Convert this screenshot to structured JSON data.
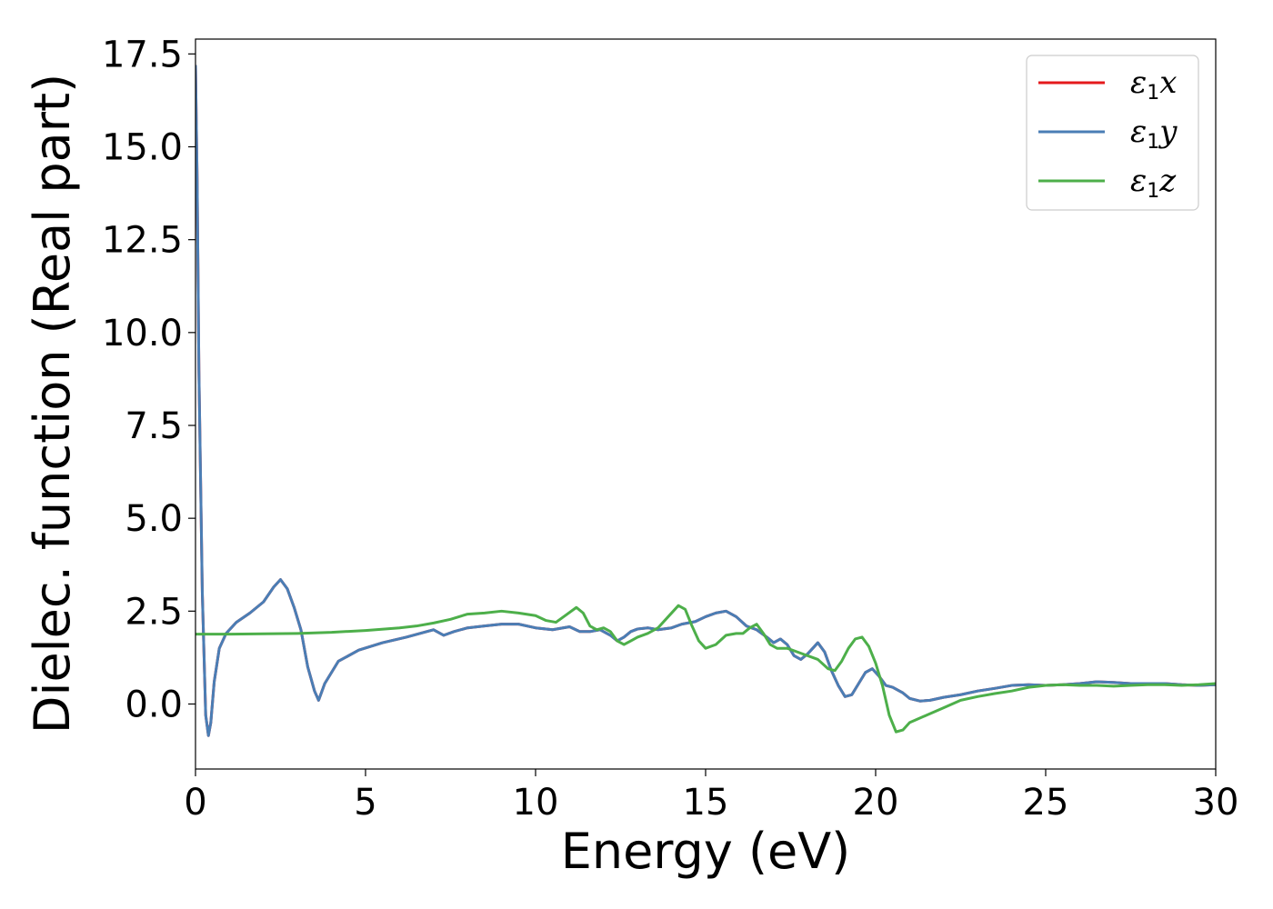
{
  "chart_data": {
    "type": "line",
    "title": "",
    "xlabel": "Energy (eV)",
    "ylabel": "Dielec. function (Real part)",
    "xlim": [
      0,
      30
    ],
    "ylim": [
      -1.75,
      17.9
    ],
    "xticks": [
      0,
      5,
      10,
      15,
      20,
      25,
      30
    ],
    "yticks": [
      0.0,
      2.5,
      5.0,
      7.5,
      10.0,
      12.5,
      15.0,
      17.5
    ],
    "xtick_labels": [
      "0",
      "5",
      "10",
      "15",
      "20",
      "25",
      "30"
    ],
    "ytick_labels": [
      "0.0",
      "2.5",
      "5.0",
      "7.5",
      "10.0",
      "12.5",
      "15.0",
      "17.5"
    ],
    "grid": false,
    "legend_position": "top-right",
    "series": [
      {
        "name": "ε1x",
        "legend_symbol": "ε",
        "legend_sub": "1",
        "legend_var": "x",
        "color": "#e41a1c",
        "x": [
          0.0,
          0.05,
          0.1,
          0.2,
          0.3,
          0.38,
          0.45,
          0.55,
          0.7,
          0.9,
          1.2,
          1.6,
          2.0,
          2.3,
          2.5,
          2.7,
          2.9,
          3.1,
          3.3,
          3.5,
          3.62,
          3.8,
          4.2,
          4.8,
          5.5,
          6.2,
          6.8,
          7.0,
          7.3,
          7.6,
          8.0,
          8.5,
          9.0,
          9.5,
          10.0,
          10.5,
          11.0,
          11.3,
          11.6,
          11.9,
          12.2,
          12.4,
          12.6,
          12.8,
          13.0,
          13.3,
          13.6,
          14.0,
          14.3,
          14.7,
          15.0,
          15.3,
          15.6,
          15.9,
          16.2,
          16.5,
          16.8,
          17.0,
          17.2,
          17.4,
          17.6,
          17.8,
          18.0,
          18.3,
          18.5,
          18.7,
          18.9,
          19.1,
          19.3,
          19.5,
          19.7,
          19.9,
          20.1,
          20.3,
          20.5,
          20.8,
          21.0,
          21.3,
          21.6,
          22.0,
          22.5,
          23.0,
          23.5,
          24.0,
          24.5,
          25.0,
          25.5,
          26.0,
          26.5,
          27.0,
          27.5,
          28.0,
          28.5,
          29.0,
          29.5,
          30.0
        ],
        "y": [
          17.2,
          14.0,
          9.0,
          3.0,
          -0.3,
          -0.85,
          -0.5,
          0.6,
          1.5,
          1.9,
          2.2,
          2.45,
          2.75,
          3.15,
          3.35,
          3.1,
          2.6,
          2.0,
          1.0,
          0.35,
          0.1,
          0.55,
          1.15,
          1.45,
          1.65,
          1.8,
          1.95,
          2.0,
          1.85,
          1.95,
          2.05,
          2.1,
          2.15,
          2.15,
          2.05,
          2.0,
          2.08,
          1.95,
          1.95,
          2.0,
          1.85,
          1.7,
          1.8,
          1.95,
          2.02,
          2.05,
          2.0,
          2.05,
          2.15,
          2.22,
          2.35,
          2.45,
          2.5,
          2.35,
          2.1,
          2.0,
          1.8,
          1.65,
          1.75,
          1.6,
          1.3,
          1.2,
          1.35,
          1.65,
          1.4,
          0.9,
          0.5,
          0.2,
          0.25,
          0.55,
          0.85,
          0.95,
          0.75,
          0.5,
          0.45,
          0.3,
          0.15,
          0.08,
          0.1,
          0.18,
          0.25,
          0.35,
          0.42,
          0.5,
          0.52,
          0.5,
          0.52,
          0.55,
          0.6,
          0.58,
          0.55,
          0.55,
          0.55,
          0.52,
          0.5,
          0.52
        ]
      },
      {
        "name": "ε1y",
        "legend_symbol": "ε",
        "legend_sub": "1",
        "legend_var": "y",
        "color": "#4a7eb5",
        "x": [
          0.0,
          0.05,
          0.1,
          0.2,
          0.3,
          0.38,
          0.45,
          0.55,
          0.7,
          0.9,
          1.2,
          1.6,
          2.0,
          2.3,
          2.5,
          2.7,
          2.9,
          3.1,
          3.3,
          3.5,
          3.62,
          3.8,
          4.2,
          4.8,
          5.5,
          6.2,
          6.8,
          7.0,
          7.3,
          7.6,
          8.0,
          8.5,
          9.0,
          9.5,
          10.0,
          10.5,
          11.0,
          11.3,
          11.6,
          11.9,
          12.2,
          12.4,
          12.6,
          12.8,
          13.0,
          13.3,
          13.6,
          14.0,
          14.3,
          14.7,
          15.0,
          15.3,
          15.6,
          15.9,
          16.2,
          16.5,
          16.8,
          17.0,
          17.2,
          17.4,
          17.6,
          17.8,
          18.0,
          18.3,
          18.5,
          18.7,
          18.9,
          19.1,
          19.3,
          19.5,
          19.7,
          19.9,
          20.1,
          20.3,
          20.5,
          20.8,
          21.0,
          21.3,
          21.6,
          22.0,
          22.5,
          23.0,
          23.5,
          24.0,
          24.5,
          25.0,
          25.5,
          26.0,
          26.5,
          27.0,
          27.5,
          28.0,
          28.5,
          29.0,
          29.5,
          30.0
        ],
        "y": [
          17.2,
          14.0,
          9.0,
          3.0,
          -0.3,
          -0.85,
          -0.5,
          0.6,
          1.5,
          1.9,
          2.2,
          2.45,
          2.75,
          3.15,
          3.35,
          3.1,
          2.6,
          2.0,
          1.0,
          0.35,
          0.1,
          0.55,
          1.15,
          1.45,
          1.65,
          1.8,
          1.95,
          2.0,
          1.85,
          1.95,
          2.05,
          2.1,
          2.15,
          2.15,
          2.05,
          2.0,
          2.08,
          1.95,
          1.95,
          2.0,
          1.85,
          1.7,
          1.8,
          1.95,
          2.02,
          2.05,
          2.0,
          2.05,
          2.15,
          2.22,
          2.35,
          2.45,
          2.5,
          2.35,
          2.1,
          2.0,
          1.8,
          1.65,
          1.75,
          1.6,
          1.3,
          1.2,
          1.35,
          1.65,
          1.4,
          0.9,
          0.5,
          0.2,
          0.25,
          0.55,
          0.85,
          0.95,
          0.75,
          0.5,
          0.45,
          0.3,
          0.15,
          0.08,
          0.1,
          0.18,
          0.25,
          0.35,
          0.42,
          0.5,
          0.52,
          0.5,
          0.52,
          0.55,
          0.6,
          0.58,
          0.55,
          0.55,
          0.55,
          0.52,
          0.5,
          0.52
        ]
      },
      {
        "name": "ε1z",
        "legend_symbol": "ε",
        "legend_sub": "1",
        "legend_var": "z",
        "color": "#4daf4a",
        "x": [
          0.0,
          1.0,
          2.0,
          3.0,
          4.0,
          5.0,
          6.0,
          6.5,
          7.0,
          7.5,
          8.0,
          8.5,
          9.0,
          9.5,
          10.0,
          10.3,
          10.6,
          10.9,
          11.2,
          11.4,
          11.6,
          11.8,
          12.0,
          12.2,
          12.4,
          12.6,
          12.8,
          13.0,
          13.3,
          13.6,
          13.9,
          14.2,
          14.4,
          14.6,
          14.8,
          15.0,
          15.3,
          15.6,
          15.9,
          16.1,
          16.3,
          16.5,
          16.7,
          16.9,
          17.1,
          17.4,
          17.7,
          18.0,
          18.3,
          18.6,
          18.8,
          19.0,
          19.2,
          19.4,
          19.6,
          19.8,
          20.0,
          20.2,
          20.4,
          20.6,
          20.8,
          21.0,
          21.5,
          22.0,
          22.5,
          23.0,
          23.5,
          24.0,
          24.5,
          25.0,
          25.5,
          26.0,
          26.5,
          27.0,
          27.5,
          28.0,
          28.5,
          29.0,
          29.5,
          30.0
        ],
        "y": [
          1.88,
          1.88,
          1.89,
          1.9,
          1.93,
          1.98,
          2.05,
          2.1,
          2.18,
          2.28,
          2.42,
          2.45,
          2.5,
          2.45,
          2.38,
          2.25,
          2.2,
          2.4,
          2.6,
          2.45,
          2.1,
          2.0,
          2.05,
          1.95,
          1.7,
          1.6,
          1.7,
          1.8,
          1.9,
          2.05,
          2.35,
          2.65,
          2.55,
          2.1,
          1.7,
          1.5,
          1.6,
          1.85,
          1.9,
          1.9,
          2.05,
          2.15,
          1.9,
          1.6,
          1.5,
          1.5,
          1.4,
          1.3,
          1.2,
          0.95,
          0.9,
          1.15,
          1.5,
          1.75,
          1.8,
          1.55,
          1.1,
          0.5,
          -0.3,
          -0.75,
          -0.7,
          -0.5,
          -0.3,
          -0.1,
          0.1,
          0.2,
          0.28,
          0.35,
          0.45,
          0.5,
          0.52,
          0.5,
          0.5,
          0.48,
          0.5,
          0.52,
          0.52,
          0.5,
          0.52,
          0.55
        ]
      }
    ]
  }
}
